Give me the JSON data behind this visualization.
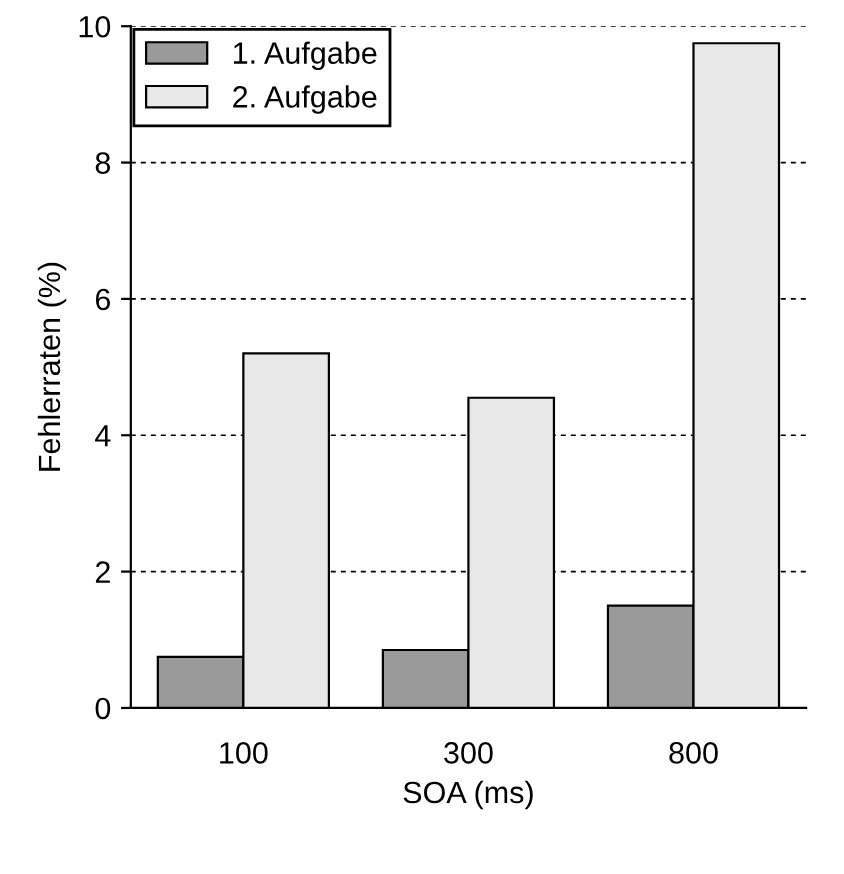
{
  "chart_data": {
    "type": "bar",
    "xlabel": "SOA (ms)",
    "ylabel": "Fehlerraten (%)",
    "categories": [
      "100",
      "300",
      "800"
    ],
    "series": [
      {
        "name": "1. Aufgabe",
        "color": "#999999",
        "values": [
          0.75,
          0.85,
          1.5
        ]
      },
      {
        "name": "2. Aufgabe",
        "color": "#e8e8e8",
        "values": [
          5.2,
          4.55,
          9.75
        ]
      }
    ],
    "ylim": [
      0,
      10
    ],
    "yticks": [
      0,
      2,
      4,
      6,
      8,
      10
    ],
    "grid": "y",
    "legend": "top left"
  }
}
